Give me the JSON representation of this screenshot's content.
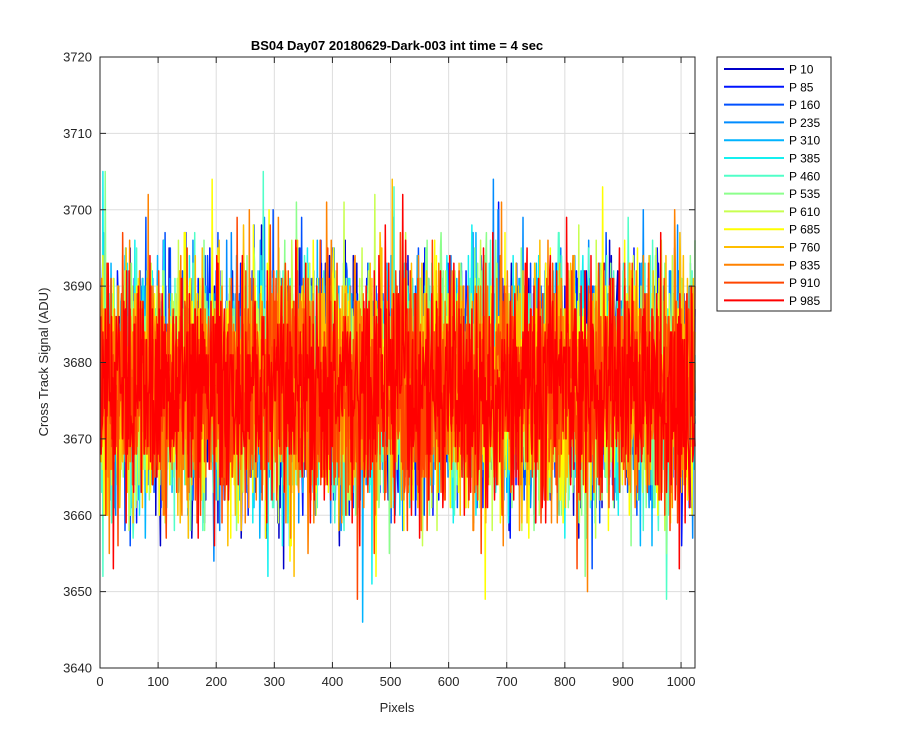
{
  "chart_data": {
    "type": "line",
    "title": "BS04 Day07 20180629-Dark-003 int time = 4 sec",
    "xlabel": "Pixels",
    "ylabel": "Cross Track Signal (ADU)",
    "xlim": [
      0,
      1024
    ],
    "ylim": [
      3640,
      3720
    ],
    "xticks": [
      0,
      100,
      200,
      300,
      400,
      500,
      600,
      700,
      800,
      900,
      1000
    ],
    "yticks": [
      3640,
      3650,
      3660,
      3670,
      3680,
      3690,
      3700,
      3710,
      3720
    ],
    "grid": true,
    "legend_position": "outside-top-right",
    "noise_model": {
      "points": 1024,
      "mean": 3677,
      "std": 7.5
    },
    "series": [
      {
        "name": "P 10",
        "color": "#0000c8"
      },
      {
        "name": "P 85",
        "color": "#0014ff"
      },
      {
        "name": "P 160",
        "color": "#0050ff"
      },
      {
        "name": "P 235",
        "color": "#008cff"
      },
      {
        "name": "P 310",
        "color": "#00b4ff"
      },
      {
        "name": "P 385",
        "color": "#14f0f0"
      },
      {
        "name": "P 460",
        "color": "#50ffc8"
      },
      {
        "name": "P 535",
        "color": "#8cff8c"
      },
      {
        "name": "P 610",
        "color": "#c8ff50"
      },
      {
        "name": "P 685",
        "color": "#ffff00"
      },
      {
        "name": "P 760",
        "color": "#ffbe00"
      },
      {
        "name": "P 835",
        "color": "#ff8200"
      },
      {
        "name": "P 910",
        "color": "#ff4600"
      },
      {
        "name": "P 985",
        "color": "#ff0000"
      }
    ]
  }
}
